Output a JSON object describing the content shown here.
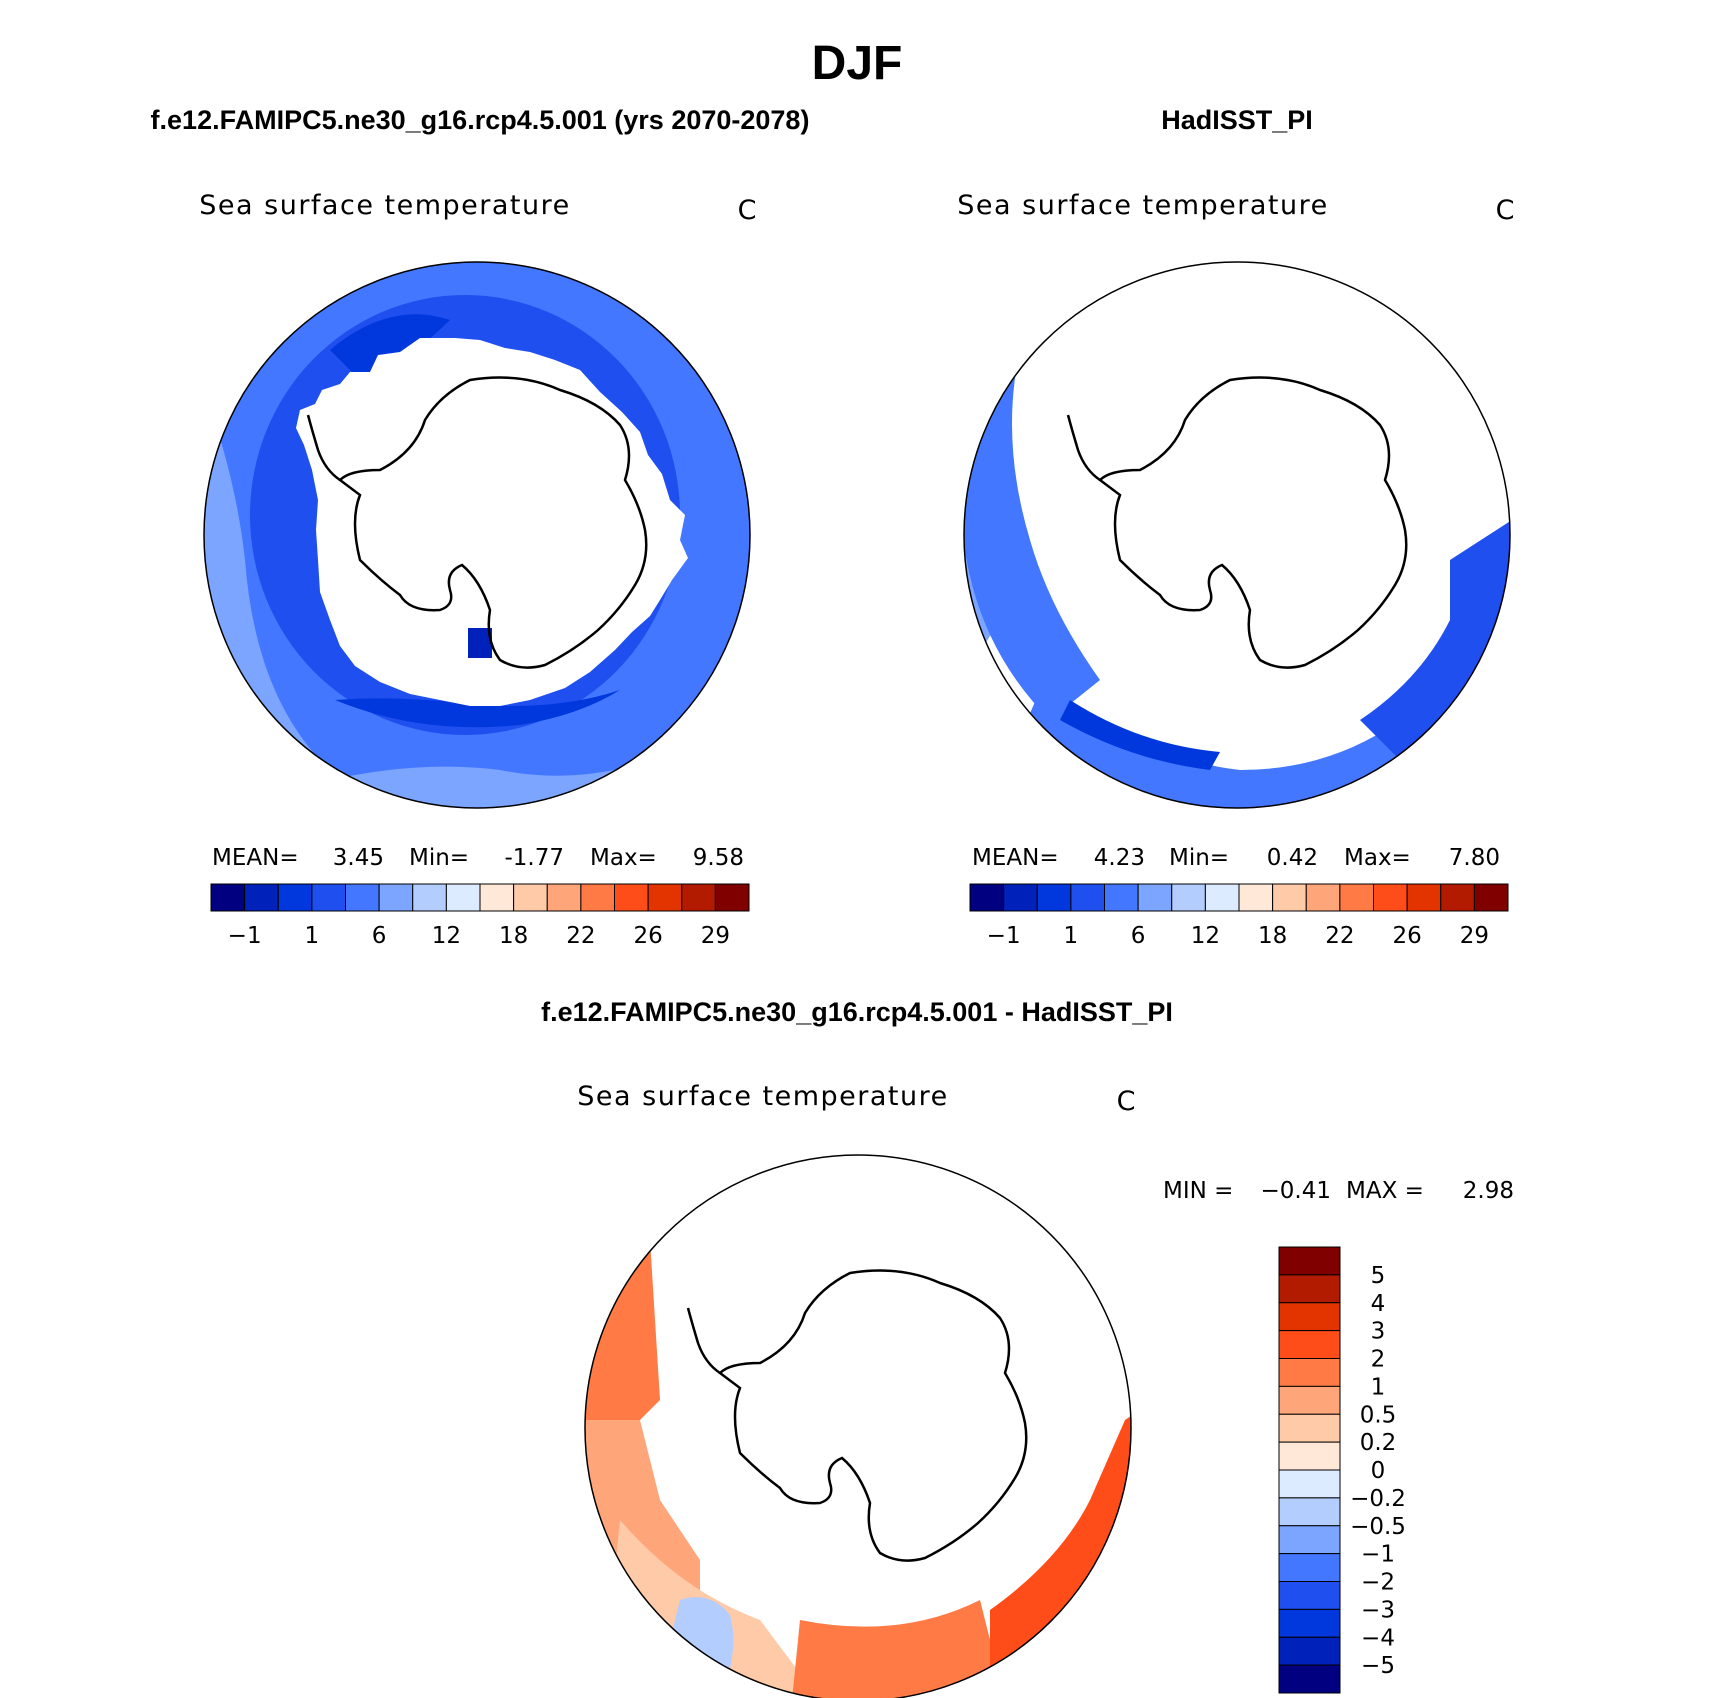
{
  "page_title": "DJF",
  "chart_data": [
    {
      "type": "polar-contour-map",
      "title": "f.e12.FAMIPC5.ne30_g16.rcp4.5.001 (yrs 2070-2078)",
      "variable": "Sea surface temperature",
      "units": "C",
      "projection": "south polar stereographic",
      "stats": {
        "mean_label": "MEAN=",
        "mean": "3.45",
        "min_label": "Min=",
        "min": "-1.77",
        "max_label": "Max=",
        "max": "9.58"
      },
      "colorbar": {
        "orientation": "horizontal",
        "colors": [
          "#000080",
          "#0022bb",
          "#0038dd",
          "#1f4fef",
          "#4477ff",
          "#7ca5ff",
          "#b4cdff",
          "#dcebff",
          "#ffe8d8",
          "#ffcaa8",
          "#ffa57a",
          "#ff7a45",
          "#ff4d1a",
          "#e33400",
          "#b31b00",
          "#800000"
        ],
        "tick_labels": [
          "−1",
          "1",
          "6",
          "12",
          "18",
          "22",
          "26",
          "29"
        ]
      }
    },
    {
      "type": "polar-contour-map",
      "title": "HadISST_PI",
      "variable": "Sea surface temperature",
      "units": "C",
      "projection": "south polar stereographic",
      "stats": {
        "mean_label": "MEAN=",
        "mean": "4.23",
        "min_label": "Min=",
        "min": "0.42",
        "max_label": "Max=",
        "max": "7.80"
      },
      "colorbar": {
        "orientation": "horizontal",
        "colors": [
          "#000080",
          "#0022bb",
          "#0038dd",
          "#1f4fef",
          "#4477ff",
          "#7ca5ff",
          "#b4cdff",
          "#dcebff",
          "#ffe8d8",
          "#ffcaa8",
          "#ffa57a",
          "#ff7a45",
          "#ff4d1a",
          "#e33400",
          "#b31b00",
          "#800000"
        ],
        "tick_labels": [
          "−1",
          "1",
          "6",
          "12",
          "18",
          "22",
          "26",
          "29"
        ]
      }
    },
    {
      "type": "polar-contour-map",
      "title": "f.e12.FAMIPC5.ne30_g16.rcp4.5.001 - HadISST_PI",
      "variable": "Sea surface temperature",
      "units": "C",
      "projection": "south polar stereographic",
      "stats": {
        "min_label": "MIN =",
        "min": "−0.41",
        "max_label": "MAX =",
        "max": "2.98"
      },
      "colorbar": {
        "orientation": "vertical",
        "colors": [
          "#800000",
          "#b31b00",
          "#e33400",
          "#ff4d1a",
          "#ff7a45",
          "#ffa57a",
          "#ffcaa8",
          "#ffe8d8",
          "#dcebff",
          "#b4cdff",
          "#7ca5ff",
          "#4477ff",
          "#1f4fef",
          "#0038dd",
          "#0022bb",
          "#000080"
        ],
        "tick_labels": [
          "5",
          "4",
          "3",
          "2",
          "1",
          "0.5",
          "0.2",
          "0",
          "−0.2",
          "−0.5",
          "−1",
          "−2",
          "−3",
          "−4",
          "−5"
        ]
      }
    }
  ]
}
